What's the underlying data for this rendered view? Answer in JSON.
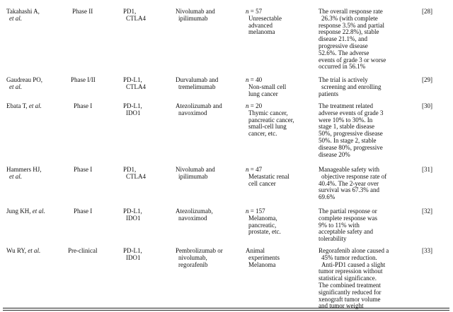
{
  "rows": [
    {
      "author": [
        "Takahashi A,",
        "et al."
      ],
      "phase": [
        "Phase II"
      ],
      "target": [
        "PD1,",
        "CTLA4"
      ],
      "drugs": [
        "Nivolumab and",
        "ipilimumab"
      ],
      "patients": [
        "n = 57",
        "Unresectable",
        "advanced",
        "melanoma"
      ],
      "outcome": [
        "The overall response rate",
        "26.3% (with complete",
        "response 3.5% and partial",
        "response 22.8%), stable",
        "disease 21.1%, and",
        "progressive disease",
        "52.6%. The adverse",
        "events of grade 3 or worse",
        "occurred in 56.1%"
      ],
      "ref": "[28]"
    },
    {
      "author": [
        "Gaudreau PO,",
        "et al."
      ],
      "phase": [
        "Phase I/II"
      ],
      "target": [
        "PD-L1,",
        "CTLA4"
      ],
      "drugs": [
        "Durvalumab and",
        "tremelimumab"
      ],
      "patients": [
        "n = 40",
        "Non-small cell",
        "lung cancer"
      ],
      "outcome": [
        "The trial is actively",
        "screening and enrolling",
        "patients"
      ],
      "ref": "[29]"
    },
    {
      "author": [
        "Ebata T, et al."
      ],
      "phase": [
        "Phase I"
      ],
      "target": [
        "PD-L1,",
        "IDO1"
      ],
      "drugs": [
        "Atezolizumab and",
        "navoximod"
      ],
      "patients": [
        "n = 20",
        "Thymic cancer,",
        "pancreatic cancer,",
        "small-cell lung",
        "cancer, etc."
      ],
      "outcome": [
        "The treatment related",
        "adverse events of grade 3",
        "were 10% to 30%. In",
        "stage 1, stable disease",
        "50%, progressive disease",
        "50%. In stage 2, stable",
        "disease 80%, progressive",
        "disease 20%"
      ],
      "ref": "[30]"
    },
    {
      "author": [
        "Hammers HJ,",
        "et al."
      ],
      "phase": [
        "Phase I"
      ],
      "target": [
        "PD1,",
        "CTLA4"
      ],
      "drugs": [
        "Nivolumab and",
        "ipilimumab"
      ],
      "patients": [
        "n = 47",
        "Metastatic renal",
        "cell cancer"
      ],
      "outcome": [
        "Manageable safety with",
        "objective response rate of",
        "40.4%. The 2-year over",
        "survival was 67.3% and",
        "69.6%"
      ],
      "ref": "[31]"
    },
    {
      "author": [
        "Jung KH, et al."
      ],
      "phase": [
        "Phase I"
      ],
      "target": [
        "PD-L1,",
        "IDO1"
      ],
      "drugs": [
        "Atezolizumab,",
        "navoximod"
      ],
      "patients": [
        "n = 157",
        "Melanoma,",
        "pancreatic,",
        "prostate, etc."
      ],
      "outcome": [
        "The partial response or",
        "complete response was",
        "9% to 11% with",
        "acceptable safety and",
        "tolerability"
      ],
      "ref": "[32]"
    },
    {
      "author": [
        "Wu RY, et al."
      ],
      "phase": [
        "Pre-clinical"
      ],
      "target": [
        "PD-L1,",
        "IDO1"
      ],
      "drugs": [
        "Pembrolizumab or",
        "nivolumab,",
        "regorafenib"
      ],
      "patients": [
        "Animal",
        "experiments",
        "Melanoma"
      ],
      "outcome": [
        "Regorafenib alone caused a",
        "45% tumor reduction.",
        "Anti-PD1 caused a slight",
        "tumor repression without",
        "statistical significance.",
        "The combined treatment",
        "significantly reduced for",
        "xenograft tumor volume",
        "and tumor weight"
      ],
      "ref": "[33]"
    }
  ]
}
